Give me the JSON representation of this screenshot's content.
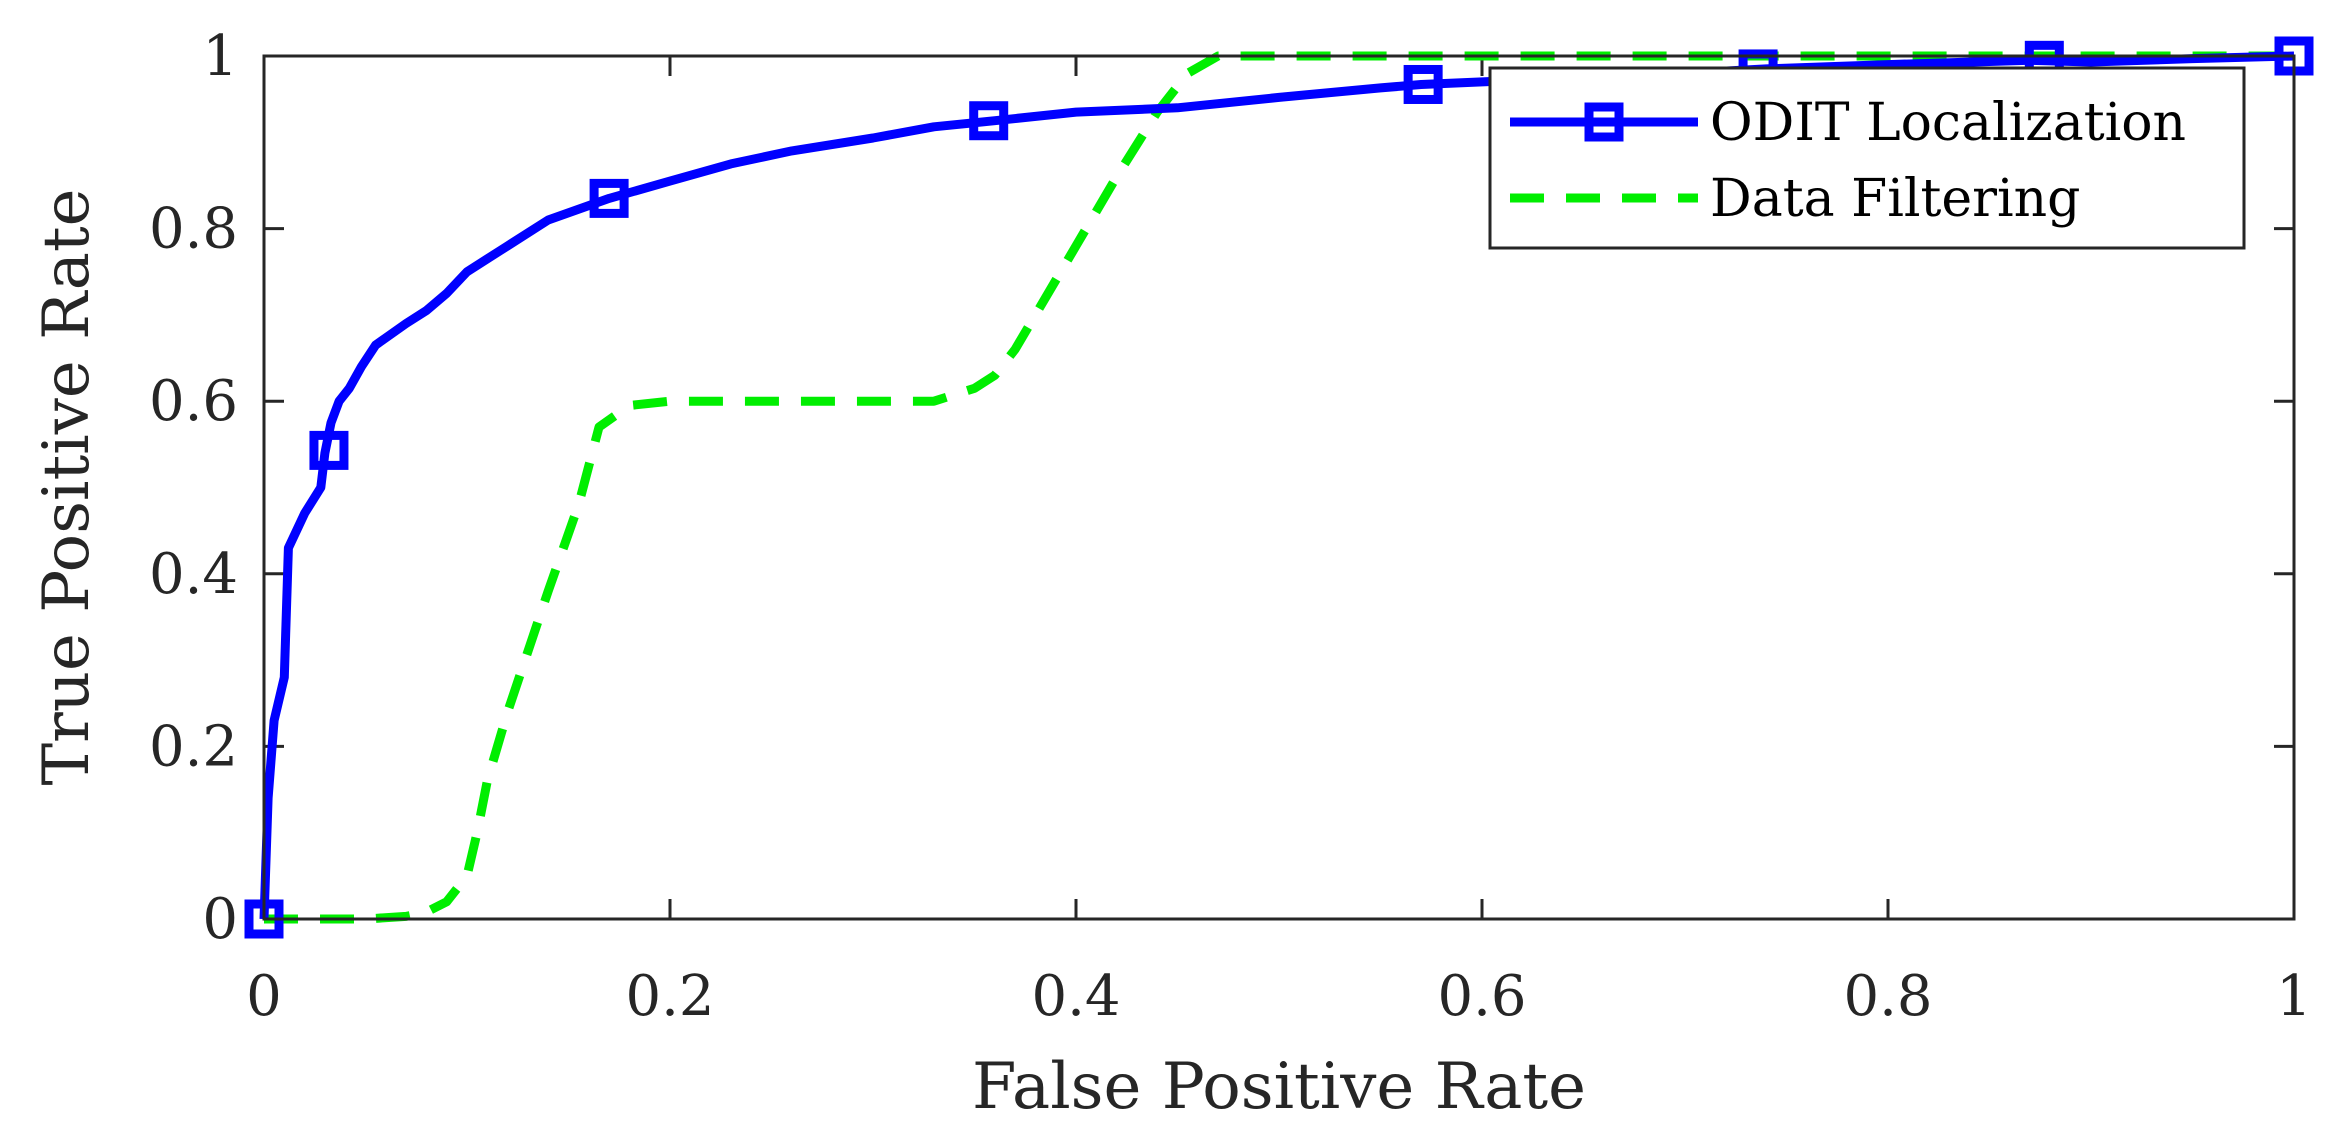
{
  "chart_data": {
    "type": "line",
    "title": "",
    "xlabel": "False Positive Rate",
    "ylabel": "True Positive Rate",
    "xlim": [
      0,
      1
    ],
    "ylim": [
      0,
      1
    ],
    "xticks": [
      0,
      0.2,
      0.4,
      0.6,
      0.8,
      1
    ],
    "yticks": [
      0,
      0.2,
      0.4,
      0.6,
      0.8,
      1
    ],
    "xtick_labels": [
      "0",
      "0.2",
      "0.4",
      "0.6",
      "0.8",
      "1"
    ],
    "ytick_labels": [
      "0",
      "0.2",
      "0.4",
      "0.6",
      "0.8",
      "1"
    ],
    "grid": false,
    "legend_position": "top-right",
    "series": [
      {
        "name": "ODIT Localization",
        "color": "#0000ff",
        "style": "solid",
        "marker": "square",
        "x": [
          0,
          0.002,
          0.005,
          0.01,
          0.012,
          0.02,
          0.028,
          0.03,
          0.033,
          0.037,
          0.042,
          0.048,
          0.055,
          0.07,
          0.08,
          0.09,
          0.1,
          0.11,
          0.12,
          0.14,
          0.17,
          0.2,
          0.23,
          0.26,
          0.3,
          0.33,
          0.36,
          0.4,
          0.45,
          0.5,
          0.55,
          0.57,
          0.6,
          0.65,
          0.7,
          0.74,
          0.8,
          0.87,
          0.9,
          0.95,
          1.0
        ],
        "y": [
          0,
          0.14,
          0.23,
          0.28,
          0.43,
          0.47,
          0.5,
          0.54,
          0.575,
          0.6,
          0.615,
          0.64,
          0.665,
          0.69,
          0.705,
          0.725,
          0.75,
          0.765,
          0.78,
          0.81,
          0.835,
          0.855,
          0.875,
          0.89,
          0.905,
          0.918,
          0.925,
          0.935,
          0.94,
          0.952,
          0.963,
          0.967,
          0.97,
          0.975,
          0.98,
          0.985,
          0.99,
          0.995,
          0.993,
          0.997,
          1.0
        ],
        "marker_x": [
          0,
          0.032,
          0.17,
          0.357,
          0.571,
          0.736,
          0.877,
          1.0
        ],
        "marker_y": [
          0,
          0.543,
          0.835,
          0.925,
          0.967,
          0.985,
          0.995,
          1.0
        ]
      },
      {
        "name": "Data Filtering",
        "color": "#00ee00",
        "style": "dashed",
        "marker": "none",
        "x": [
          0,
          0.05,
          0.07,
          0.08,
          0.09,
          0.1,
          0.105,
          0.11,
          0.12,
          0.14,
          0.155,
          0.165,
          0.18,
          0.2,
          0.3,
          0.33,
          0.35,
          0.36,
          0.37,
          0.38,
          0.4,
          0.42,
          0.44,
          0.455,
          0.47,
          0.5,
          0.6,
          0.8,
          1.0
        ],
        "y": [
          0,
          0,
          0.003,
          0.008,
          0.02,
          0.05,
          0.1,
          0.16,
          0.24,
          0.38,
          0.48,
          0.57,
          0.595,
          0.6,
          0.6,
          0.6,
          0.615,
          0.63,
          0.66,
          0.7,
          0.78,
          0.86,
          0.935,
          0.98,
          1.0,
          1.0,
          1.0,
          1.0,
          1.0
        ]
      }
    ]
  }
}
